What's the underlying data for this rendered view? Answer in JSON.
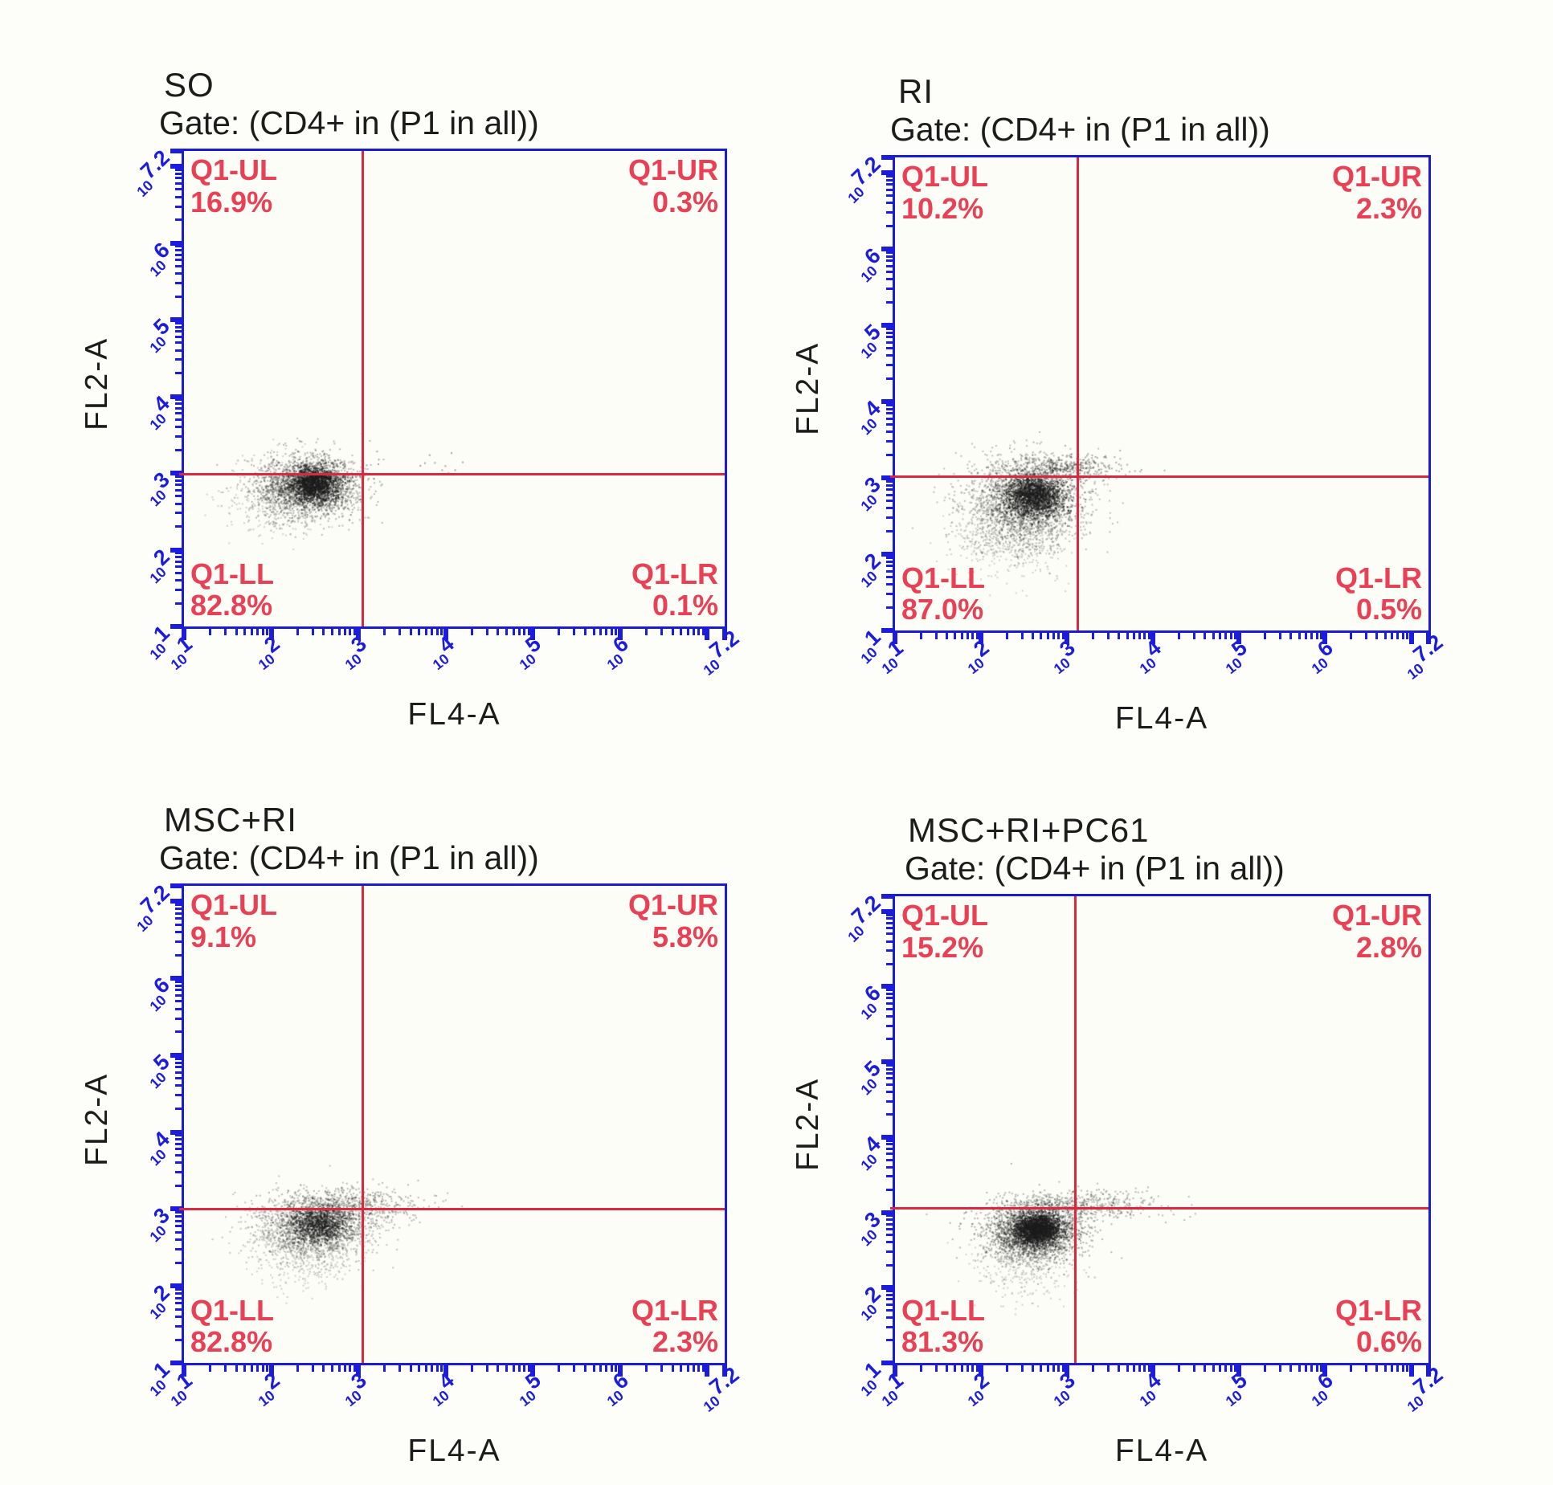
{
  "axes": {
    "xlabel": "FL4-A",
    "ylabel": "FL2-A",
    "scale": "log10",
    "log_min": 1,
    "log_max": 7.2,
    "tick_base": "10",
    "tick_exponents": [
      "1",
      "2",
      "3",
      "4",
      "5",
      "6",
      "7.2"
    ]
  },
  "colors": {
    "axis_blue": "#1a1ada",
    "tick_blue": "#1c1cdc",
    "gate_line_red": "#d92840",
    "quadrant_text_red": "#e84156",
    "dot_black": "#1c1c1c",
    "text_black": "#1c1c1c",
    "background": "#fdfdfa"
  },
  "chart_data": [
    {
      "type": "scatter",
      "title": "SO",
      "gate_label": "Gate: (CD4+ in (P1 in all))",
      "xlabel": "FL4-A",
      "ylabel": "FL2-A",
      "x_scale": "log10",
      "y_scale": "log10",
      "x_range_log10": [
        1,
        7.2
      ],
      "y_range_log10": [
        1,
        7.2
      ],
      "quadrant_gate_log10": {
        "x": 3.05,
        "y": 2.98
      },
      "quadrants": {
        "ul": {
          "label": "Q1-UL",
          "value": "16.9%",
          "pct": 16.9
        },
        "ur": {
          "label": "Q1-UR",
          "value": "0.3%",
          "pct": 0.3
        },
        "ll": {
          "label": "Q1-LL",
          "value": "82.8%",
          "pct": 82.8
        },
        "lr": {
          "label": "Q1-LR",
          "value": "0.1%",
          "pct": 0.1
        }
      },
      "population_clusters_approx": [
        {
          "n": 2200,
          "cx": 2.42,
          "cy": 2.82,
          "sx": 0.3,
          "sy": 0.2,
          "alpha": 0.3
        },
        {
          "n": 1400,
          "cx": 2.5,
          "cy": 2.86,
          "sx": 0.14,
          "sy": 0.11,
          "alpha": 0.55
        },
        {
          "n": 400,
          "cx": 2.12,
          "cy": 2.68,
          "sx": 0.3,
          "sy": 0.26,
          "alpha": 0.2
        },
        {
          "n": 14,
          "cx": 3.7,
          "cy": 3.15,
          "sx": 0.35,
          "sy": 0.1,
          "alpha": 0.4
        }
      ],
      "seed": 11
    },
    {
      "type": "scatter",
      "title": "RI",
      "gate_label": "Gate: (CD4+ in (P1 in all))",
      "xlabel": "FL4-A",
      "ylabel": "FL2-A",
      "x_scale": "log10",
      "y_scale": "log10",
      "x_range_log10": [
        1,
        7.2
      ],
      "y_range_log10": [
        1,
        7.2
      ],
      "quadrant_gate_log10": {
        "x": 3.12,
        "y": 3.02
      },
      "quadrants": {
        "ul": {
          "label": "Q1-UL",
          "value": "10.2%",
          "pct": 10.2
        },
        "ur": {
          "label": "Q1-UR",
          "value": "2.3%",
          "pct": 2.3
        },
        "ll": {
          "label": "Q1-LL",
          "value": "87.0%",
          "pct": 87.0
        },
        "lr": {
          "label": "Q1-LR",
          "value": "0.5%",
          "pct": 0.5
        }
      },
      "population_clusters_approx": [
        {
          "n": 2400,
          "cx": 2.52,
          "cy": 2.68,
          "sx": 0.34,
          "sy": 0.28,
          "alpha": 0.28
        },
        {
          "n": 1500,
          "cx": 2.62,
          "cy": 2.76,
          "sx": 0.17,
          "sy": 0.13,
          "alpha": 0.55
        },
        {
          "n": 420,
          "cx": 2.95,
          "cy": 3.12,
          "sx": 0.34,
          "sy": 0.1,
          "alpha": 0.35
        },
        {
          "n": 500,
          "cx": 2.32,
          "cy": 2.22,
          "sx": 0.32,
          "sy": 0.26,
          "alpha": 0.2
        }
      ],
      "seed": 22
    },
    {
      "type": "scatter",
      "title": "MSC+RI",
      "gate_label": "Gate: (CD4+ in (P1 in all))",
      "xlabel": "FL4-A",
      "ylabel": "FL2-A",
      "x_scale": "log10",
      "y_scale": "log10",
      "x_range_log10": [
        1,
        7.2
      ],
      "y_range_log10": [
        1,
        7.2
      ],
      "quadrant_gate_log10": {
        "x": 3.05,
        "y": 3.0
      },
      "quadrants": {
        "ul": {
          "label": "Q1-UL",
          "value": "9.1%",
          "pct": 9.1
        },
        "ur": {
          "label": "Q1-UR",
          "value": "5.8%",
          "pct": 5.8
        },
        "ll": {
          "label": "Q1-LL",
          "value": "82.8%",
          "pct": 82.8
        },
        "lr": {
          "label": "Q1-LR",
          "value": "2.3%",
          "pct": 2.3
        }
      },
      "population_clusters_approx": [
        {
          "n": 1700,
          "cx": 2.48,
          "cy": 2.76,
          "sx": 0.34,
          "sy": 0.21,
          "alpha": 0.26
        },
        {
          "n": 950,
          "cx": 2.56,
          "cy": 2.8,
          "sx": 0.17,
          "sy": 0.12,
          "alpha": 0.48
        },
        {
          "n": 520,
          "cx": 2.95,
          "cy": 3.05,
          "sx": 0.42,
          "sy": 0.11,
          "alpha": 0.3
        },
        {
          "n": 380,
          "cx": 2.36,
          "cy": 2.42,
          "sx": 0.3,
          "sy": 0.24,
          "alpha": 0.2
        }
      ],
      "seed": 33
    },
    {
      "type": "scatter",
      "title": "MSC+RI+PC61",
      "gate_label": "Gate: (CD4+ in (P1 in all))",
      "xlabel": "FL4-A",
      "ylabel": "FL2-A",
      "x_scale": "log10",
      "y_scale": "log10",
      "x_range_log10": [
        1,
        7.2
      ],
      "y_range_log10": [
        1,
        7.2
      ],
      "quadrant_gate_log10": {
        "x": 3.1,
        "y": 3.05
      },
      "quadrants": {
        "ul": {
          "label": "Q1-UL",
          "value": "15.2%",
          "pct": 15.2
        },
        "ur": {
          "label": "Q1-UR",
          "value": "2.8%",
          "pct": 2.8
        },
        "ll": {
          "label": "Q1-LL",
          "value": "81.3%",
          "pct": 81.3
        },
        "lr": {
          "label": "Q1-LR",
          "value": "0.6%",
          "pct": 0.6
        }
      },
      "population_clusters_approx": [
        {
          "n": 2400,
          "cx": 2.6,
          "cy": 2.74,
          "sx": 0.28,
          "sy": 0.19,
          "alpha": 0.32
        },
        {
          "n": 1700,
          "cx": 2.66,
          "cy": 2.78,
          "sx": 0.13,
          "sy": 0.1,
          "alpha": 0.6
        },
        {
          "n": 520,
          "cx": 3.15,
          "cy": 3.1,
          "sx": 0.48,
          "sy": 0.1,
          "alpha": 0.3
        },
        {
          "n": 420,
          "cx": 2.48,
          "cy": 2.32,
          "sx": 0.3,
          "sy": 0.24,
          "alpha": 0.2
        }
      ],
      "seed": 44
    }
  ]
}
